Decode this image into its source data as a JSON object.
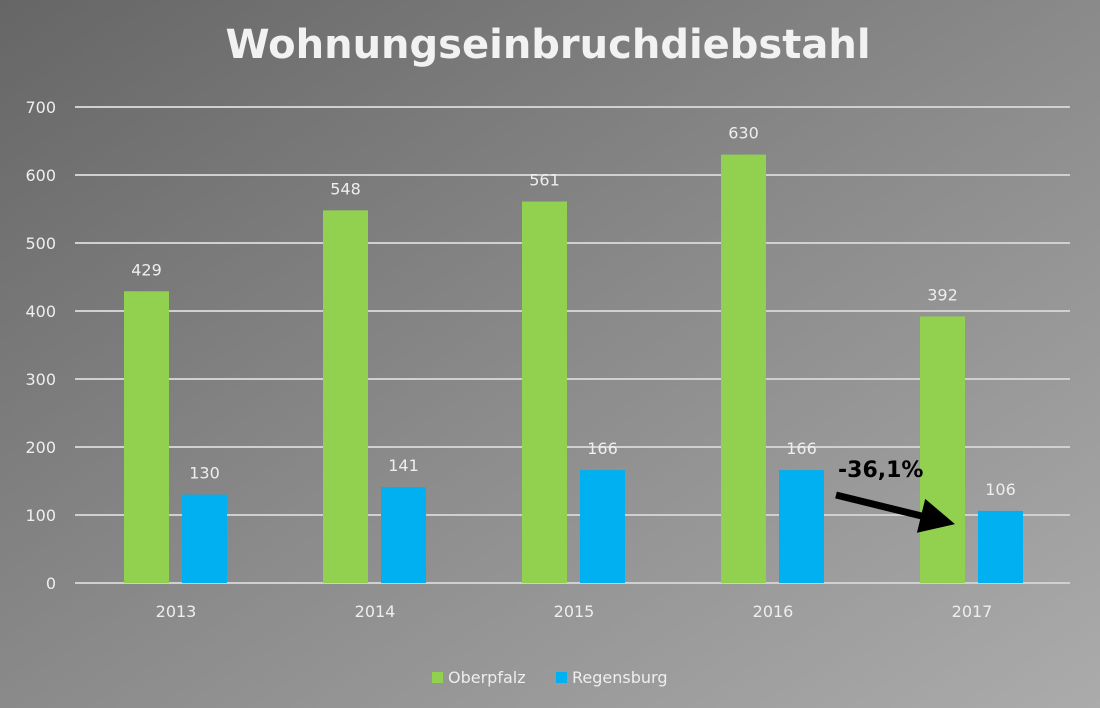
{
  "chart_data": {
    "type": "bar",
    "title": "Wohnungseinbruchdiebstahl",
    "xlabel": "",
    "ylabel": "",
    "categories": [
      "2013",
      "2014",
      "2015",
      "2016",
      "2017"
    ],
    "series": [
      {
        "name": "Oberpfalz",
        "color": "#92d050",
        "values": [
          429,
          548,
          561,
          630,
          392
        ]
      },
      {
        "name": "Regensburg",
        "color": "#00b0f0",
        "values": [
          130,
          141,
          166,
          166,
          106
        ]
      }
    ],
    "ylim": [
      0,
      700
    ],
    "yticks": [
      0,
      100,
      200,
      300,
      400,
      500,
      600,
      700
    ],
    "grid": true,
    "legend": "bottom-center",
    "annotation": {
      "text": "-36,1%",
      "arrow": "pointing to 2017"
    }
  }
}
